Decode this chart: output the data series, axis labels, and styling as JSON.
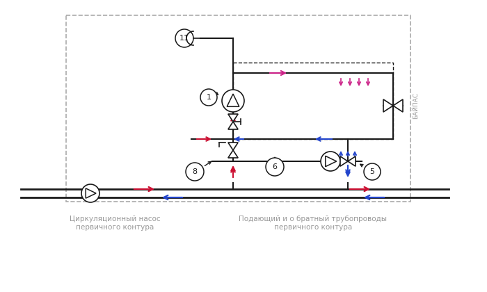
{
  "bg": "#ffffff",
  "red": "#cc1133",
  "blue": "#2244cc",
  "pink": "#cc2288",
  "black": "#1a1a1a",
  "gray": "#999999",
  "lgray": "#aaaaaa",
  "bypass_label": "БАЙПАС",
  "label1a": "Циркуляционный насос",
  "label1b": "первичного контура",
  "label2a": "Подающий и о братный трубопроводы",
  "label2b": "первичного контура"
}
